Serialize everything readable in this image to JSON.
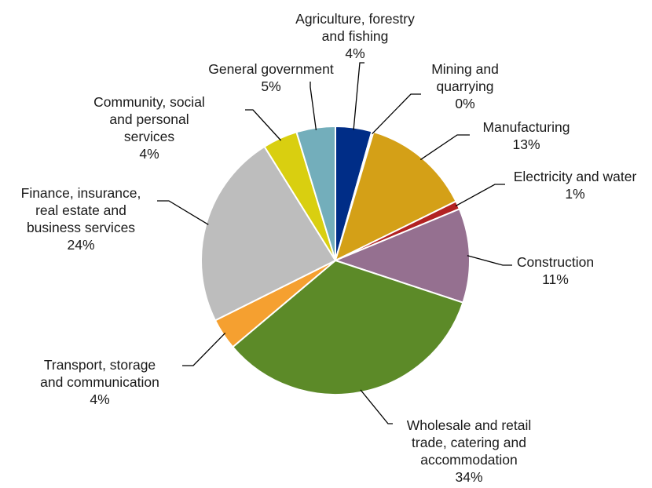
{
  "chart_data": {
    "type": "pie",
    "title": "",
    "slices": [
      {
        "lines": [
          "Agriculture, forestry",
          "and fishing"
        ],
        "pct_label": "4%",
        "value": 4.4,
        "color": "#002D87"
      },
      {
        "lines": [
          "Mining and",
          "quarrying"
        ],
        "pct_label": "0%",
        "value": 0.2,
        "color": "#1F4E79"
      },
      {
        "lines": [
          "Manufacturing"
        ],
        "pct_label": "13%",
        "value": 13.2,
        "color": "#D4A017"
      },
      {
        "lines": [
          "Electricity and water"
        ],
        "pct_label": "1%",
        "value": 1.0,
        "color": "#B22222"
      },
      {
        "lines": [
          "Construction"
        ],
        "pct_label": "11%",
        "value": 11.4,
        "color": "#957090"
      },
      {
        "lines": [
          "Wholesale and retail",
          "trade, catering and",
          "accommodation"
        ],
        "pct_label": "34%",
        "value": 33.9,
        "color": "#5C8A28"
      },
      {
        "lines": [
          "Transport, storage",
          "and communication"
        ],
        "pct_label": "4%",
        "value": 3.8,
        "color": "#F5A030"
      },
      {
        "lines": [
          "Finance, insurance,",
          "real estate and",
          "business services"
        ],
        "pct_label": "24%",
        "value": 23.6,
        "color": "#BDBDBD"
      },
      {
        "lines": [
          "Community, social",
          "and personal",
          "services"
        ],
        "pct_label": "4%",
        "value": 4.2,
        "color": "#D9CF10"
      },
      {
        "lines": [
          "General government"
        ],
        "pct_label": "5%",
        "value": 4.7,
        "color": "#73AEBB"
      }
    ]
  }
}
